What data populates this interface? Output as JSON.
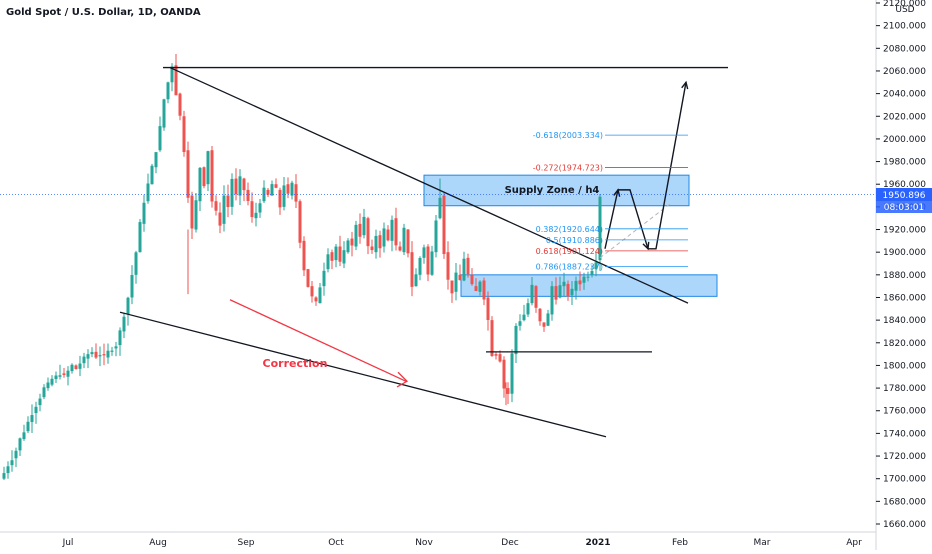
{
  "chart_title": "Gold Spot / U.S. Dollar, 1D, OANDA",
  "colors": {
    "up": "#26a69a",
    "down": "#ef5350",
    "zone_fill": "#90caf9",
    "zone_stroke": "#1e88e5",
    "fib_blue": "#2196f3",
    "fib_red": "#e53935",
    "price_badge": "#2962ff",
    "arrow_red": "#f23645"
  },
  "price_axis": {
    "currency": "USD",
    "ticks": [
      "2120.000",
      "2100.000",
      "2080.000",
      "2060.000",
      "2040.000",
      "2020.000",
      "2000.000",
      "1980.000",
      "1960.000",
      "1940.000",
      "1920.000",
      "1900.000",
      "1880.000",
      "1860.000",
      "1840.000",
      "1820.000",
      "1800.000",
      "1780.000",
      "1760.000",
      "1740.000",
      "1720.000",
      "1700.000",
      "1680.000",
      "1660.000"
    ],
    "last_price": "1950.896",
    "countdown": "08:03:01"
  },
  "time_axis": {
    "labels": [
      "Jul",
      "Aug",
      "Sep",
      "Oct",
      "Nov",
      "Dec",
      "2021",
      "Feb",
      "Mar",
      "Apr"
    ]
  },
  "annotations": {
    "supply_zone": "Supply Zone / h4",
    "correction": "Correction",
    "fib_levels": [
      {
        "label": "-0.618(2003.334)",
        "price": 2003.334,
        "color": "blue"
      },
      {
        "label": "-0.272(1974.723)",
        "price": 1974.723,
        "color": "red"
      },
      {
        "label": "0.382(1920.644)",
        "price": 1920.644,
        "color": "blue"
      },
      {
        "label": "0.5(1910.886)",
        "price": 1910.886,
        "color": "blue"
      },
      {
        "label": "0.618(1901.124)",
        "price": 1901.124,
        "color": "red"
      },
      {
        "label": "0.786(1887.237)",
        "price": 1887.237,
        "color": "blue"
      }
    ]
  },
  "chart_data": {
    "type": "candlestick",
    "title": "Gold Spot / U.S. Dollar, 1D, OANDA",
    "ylabel": "USD",
    "ylim": [
      1650,
      2125
    ],
    "x_labels": [
      "Jul",
      "Aug",
      "Sep",
      "Oct",
      "Nov",
      "Dec",
      "2021",
      "Feb",
      "Mar",
      "Apr"
    ],
    "last_price": 1950.896,
    "zones": [
      {
        "label": "Supply Zone / h4",
        "top": 1968,
        "bottom": 1941
      },
      {
        "label": "",
        "top": 1880,
        "bottom": 1861
      }
    ],
    "horizontal_levels": [
      2063,
      1812
    ],
    "close_path": [
      [
        0,
        1700
      ],
      [
        4,
        1705
      ],
      [
        8,
        1712
      ],
      [
        12,
        1718
      ],
      [
        16,
        1725
      ],
      [
        20,
        1735
      ],
      [
        24,
        1742
      ],
      [
        28,
        1750
      ],
      [
        32,
        1758
      ],
      [
        36,
        1765
      ],
      [
        40,
        1772
      ],
      [
        44,
        1780
      ],
      [
        48,
        1783
      ],
      [
        52,
        1788
      ],
      [
        56,
        1790
      ],
      [
        60,
        1793
      ],
      [
        64,
        1790
      ],
      [
        68,
        1795
      ],
      [
        72,
        1800
      ],
      [
        76,
        1797
      ],
      [
        80,
        1802
      ],
      [
        84,
        1806
      ],
      [
        88,
        1810
      ],
      [
        92,
        1812
      ],
      [
        96,
        1808
      ],
      [
        100,
        1810
      ],
      [
        104,
        1807
      ],
      [
        108,
        1812
      ],
      [
        112,
        1815
      ],
      [
        116,
        1818
      ],
      [
        120,
        1830
      ],
      [
        124,
        1845
      ],
      [
        128,
        1860
      ],
      [
        132,
        1880
      ],
      [
        136,
        1900
      ],
      [
        140,
        1925
      ],
      [
        144,
        1945
      ],
      [
        148,
        1960
      ],
      [
        152,
        1975
      ],
      [
        156,
        1990
      ],
      [
        160,
        2010
      ],
      [
        164,
        2035
      ],
      [
        168,
        2050
      ],
      [
        172,
        2065
      ],
      [
        176,
        2040
      ],
      [
        180,
        2020
      ],
      [
        184,
        1990
      ],
      [
        188,
        1950
      ],
      [
        192,
        1920
      ],
      [
        196,
        1945
      ],
      [
        200,
        1975
      ],
      [
        204,
        1960
      ],
      [
        208,
        1990
      ],
      [
        212,
        1945
      ],
      [
        216,
        1935
      ],
      [
        220,
        1925
      ],
      [
        224,
        1950
      ],
      [
        228,
        1940
      ],
      [
        232,
        1965
      ],
      [
        236,
        1950
      ],
      [
        240,
        1965
      ],
      [
        244,
        1955
      ],
      [
        248,
        1945
      ],
      [
        252,
        1930
      ],
      [
        256,
        1935
      ],
      [
        260,
        1945
      ],
      [
        264,
        1955
      ],
      [
        268,
        1950
      ],
      [
        272,
        1960
      ],
      [
        276,
        1955
      ],
      [
        280,
        1940
      ],
      [
        284,
        1960
      ],
      [
        288,
        1950
      ],
      [
        292,
        1960
      ],
      [
        296,
        1945
      ],
      [
        300,
        1910
      ],
      [
        304,
        1885
      ],
      [
        308,
        1870
      ],
      [
        312,
        1860
      ],
      [
        316,
        1855
      ],
      [
        320,
        1870
      ],
      [
        324,
        1885
      ],
      [
        328,
        1900
      ],
      [
        332,
        1893
      ],
      [
        336,
        1905
      ],
      [
        340,
        1890
      ],
      [
        344,
        1900
      ],
      [
        348,
        1912
      ],
      [
        352,
        1905
      ],
      [
        356,
        1925
      ],
      [
        360,
        1915
      ],
      [
        364,
        1930
      ],
      [
        368,
        1905
      ],
      [
        372,
        1900
      ],
      [
        376,
        1915
      ],
      [
        380,
        1905
      ],
      [
        384,
        1920
      ],
      [
        388,
        1910
      ],
      [
        392,
        1930
      ],
      [
        396,
        1905
      ],
      [
        400,
        1900
      ],
      [
        404,
        1920
      ],
      [
        408,
        1900
      ],
      [
        412,
        1870
      ],
      [
        416,
        1880
      ],
      [
        420,
        1895
      ],
      [
        424,
        1905
      ],
      [
        428,
        1880
      ],
      [
        432,
        1900
      ],
      [
        436,
        1930
      ],
      [
        440,
        1950
      ],
      [
        444,
        1900
      ],
      [
        448,
        1875
      ],
      [
        452,
        1865
      ],
      [
        456,
        1880
      ],
      [
        460,
        1875
      ],
      [
        464,
        1895
      ],
      [
        468,
        1880
      ],
      [
        472,
        1870
      ],
      [
        476,
        1865
      ],
      [
        480,
        1875
      ],
      [
        484,
        1860
      ],
      [
        488,
        1840
      ],
      [
        492,
        1810
      ],
      [
        496,
        1810
      ],
      [
        500,
        1805
      ],
      [
        504,
        1780
      ],
      [
        508,
        1775
      ],
      [
        512,
        1810
      ],
      [
        516,
        1835
      ],
      [
        520,
        1840
      ],
      [
        524,
        1845
      ],
      [
        528,
        1855
      ],
      [
        532,
        1870
      ],
      [
        536,
        1850
      ],
      [
        540,
        1838
      ],
      [
        544,
        1835
      ],
      [
        548,
        1845
      ],
      [
        552,
        1870
      ],
      [
        556,
        1860
      ],
      [
        560,
        1870
      ],
      [
        564,
        1872
      ],
      [
        568,
        1862
      ],
      [
        572,
        1866
      ],
      [
        576,
        1875
      ],
      [
        580,
        1873
      ],
      [
        584,
        1878
      ],
      [
        588,
        1880
      ],
      [
        592,
        1885
      ],
      [
        596,
        1893
      ],
      [
        600,
        1950
      ]
    ]
  }
}
